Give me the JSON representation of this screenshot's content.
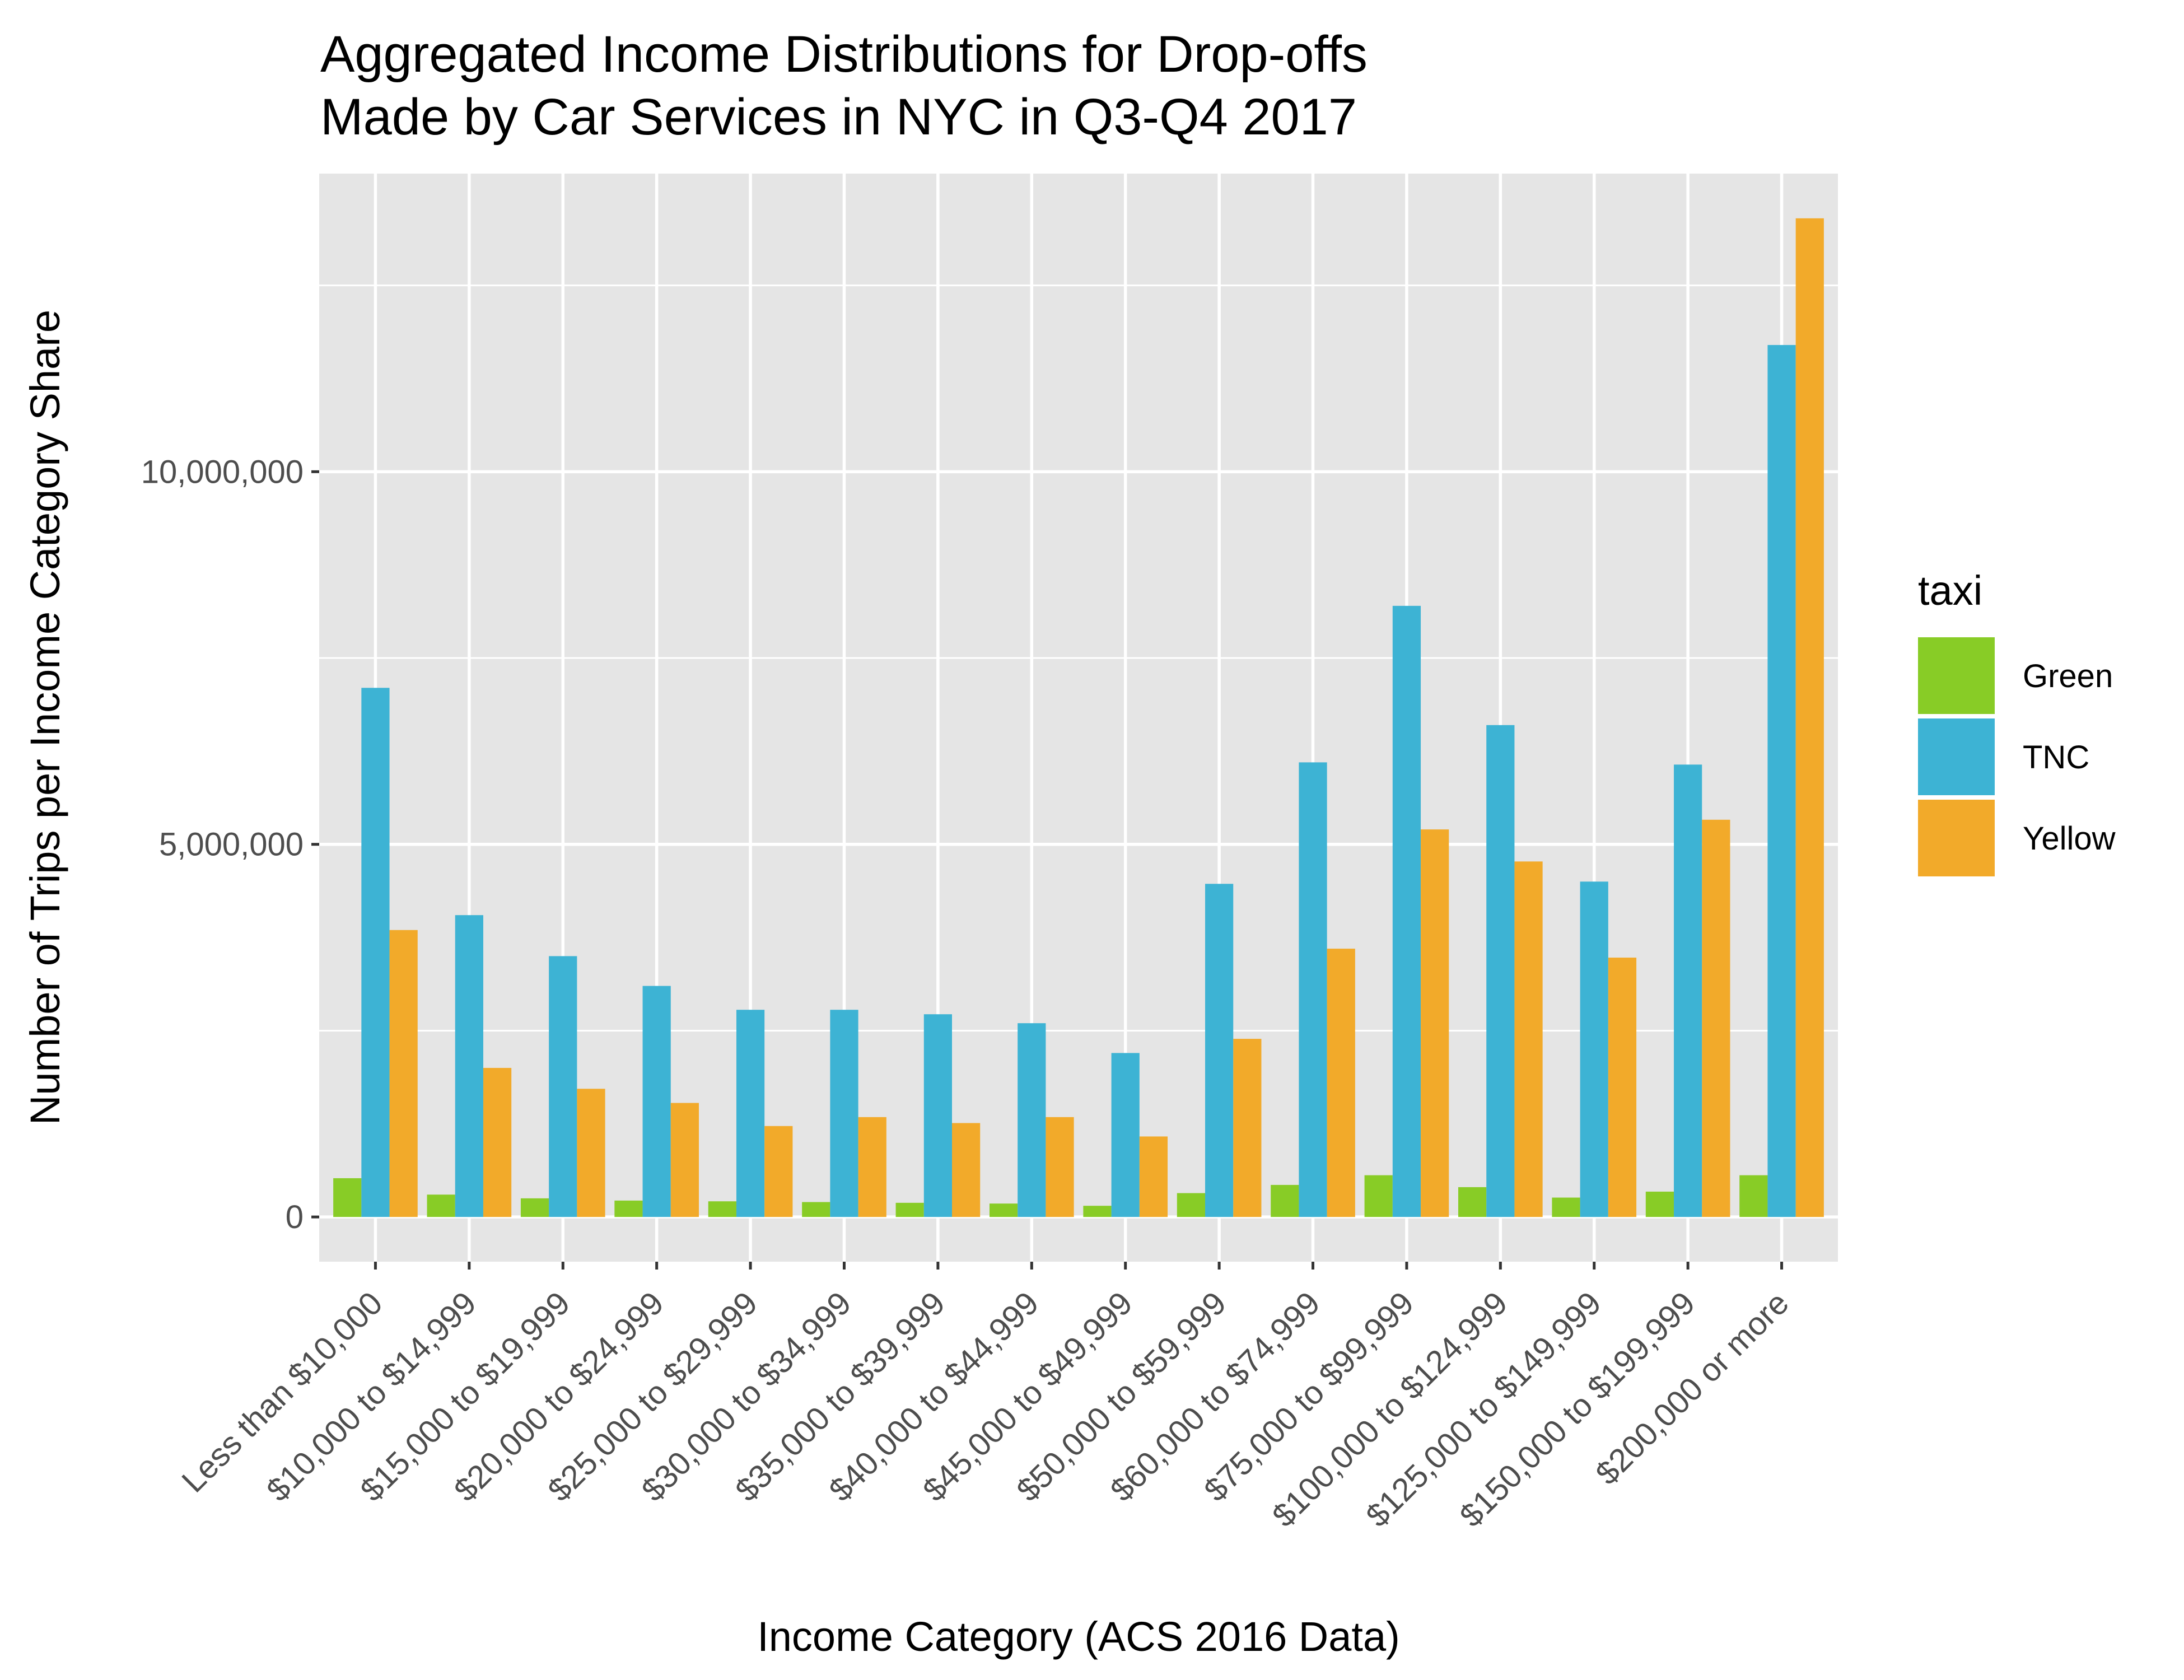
{
  "chart_data": {
    "type": "bar",
    "title_lines": [
      "Aggregated Income Distributions for Drop-offs",
      "Made by Car Services in NYC in Q3-Q4 2017"
    ],
    "xlabel": "Income Category (ACS 2016 Data)",
    "ylabel": "Number of Trips per Income Category Share",
    "ylim": [
      -600000,
      14000000
    ],
    "y_ticks": [
      0,
      5000000,
      10000000
    ],
    "y_tick_labels": [
      "0",
      "5,000,000",
      "10,000,000"
    ],
    "grid": true,
    "legend_position": "right",
    "legend_title": "taxi",
    "categories": [
      "Less than $10,000",
      "$10,000 to $14,999",
      "$15,000 to $19,999",
      "$20,000 to $24,999",
      "$25,000 to $29,999",
      "$30,000 to $34,999",
      "$35,000 to $39,999",
      "$40,000 to $44,999",
      "$45,000 to $49,999",
      "$50,000 to $59,999",
      "$60,000 to $74,999",
      "$75,000 to $99,999",
      "$100,000 to $124,999",
      "$125,000 to $149,999",
      "$150,000 to $199,999",
      "$200,000 or more"
    ],
    "series": [
      {
        "name": "Green",
        "color": "#88cc26",
        "values": [
          520000,
          300000,
          250000,
          220000,
          210000,
          200000,
          190000,
          180000,
          150000,
          320000,
          430000,
          560000,
          400000,
          260000,
          340000,
          560000
        ]
      },
      {
        "name": "TNC",
        "color": "#3db3d4",
        "values": [
          7100000,
          4050000,
          3500000,
          3100000,
          2780000,
          2780000,
          2720000,
          2600000,
          2200000,
          4470000,
          6100000,
          8200000,
          6600000,
          4500000,
          6070000,
          11700000
        ]
      },
      {
        "name": "Yellow",
        "color": "#f2aa2a",
        "values": [
          3850000,
          2000000,
          1720000,
          1530000,
          1220000,
          1340000,
          1260000,
          1340000,
          1080000,
          2390000,
          3600000,
          5200000,
          4770000,
          3480000,
          5330000,
          13400000
        ]
      }
    ]
  }
}
